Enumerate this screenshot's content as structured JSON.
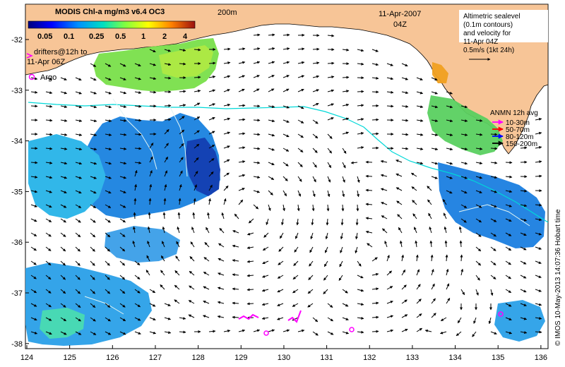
{
  "colorbar": {
    "title": "MODIS Chl-a mg/m3 v6.4 OC3",
    "ticks": [
      "0.05",
      "0.1",
      "0.25",
      "0.5",
      "1",
      "2",
      "4"
    ]
  },
  "labels": {
    "depth_contour": "200m",
    "date": "11-Apr-2007",
    "time": "04Z",
    "drifters_line1": "drifters@12h to",
    "drifters_line2": "11-Apr 06Z",
    "argo": "Argo"
  },
  "sealevel_legend": {
    "lines": [
      "Altimetric sealevel",
      "(0.1m contours)",
      "and velocity for",
      "11-Apr 04Z",
      "0.5m/s (1kt 24h)"
    ]
  },
  "anmn_legend": {
    "title": "ANMN 12h avg",
    "items": [
      {
        "label": "10-30m",
        "color": "#ff00ff"
      },
      {
        "label": "50-70m",
        "color": "#ff0000"
      },
      {
        "label": "80-120m",
        "color": "#0000ff"
      },
      {
        "label": "150-200m",
        "color": "#000000"
      }
    ]
  },
  "credit": "© IMOS 10-May-2013 14:07:36 Hobart time",
  "axes": {
    "x_ticks": [
      "124",
      "125",
      "126",
      "127",
      "128",
      "129",
      "130",
      "131",
      "132",
      "133",
      "134",
      "135",
      "136"
    ],
    "y_ticks": [
      "-32",
      "-33",
      "-34",
      "-35",
      "-36",
      "-37",
      "-38"
    ]
  },
  "colors": {
    "land": "#f7c597",
    "ocean": "#ffffff",
    "contour": "#00d8d8",
    "argo": "#ff00ff"
  }
}
